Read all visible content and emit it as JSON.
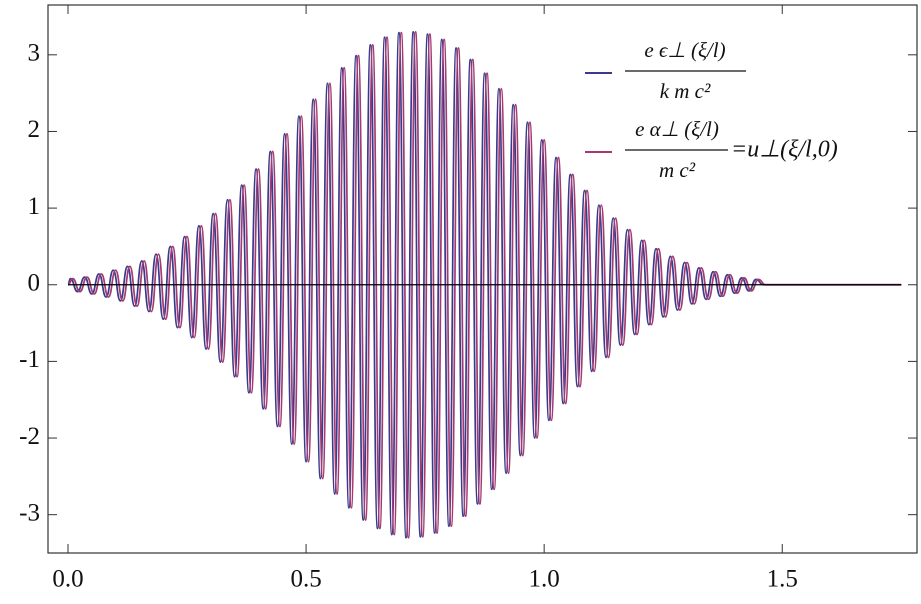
{
  "chart_data": {
    "type": "line",
    "xlim": [
      -0.042,
      1.783
    ],
    "ylim": [
      -3.5,
      3.65
    ],
    "xticks": [
      {
        "value": 0,
        "label": "0.0"
      },
      {
        "value": 0.5,
        "label": "0.5"
      },
      {
        "value": 1,
        "label": "1.0"
      },
      {
        "value": 1.5,
        "label": "1.5"
      }
    ],
    "yticks": [
      -3,
      -2,
      -1,
      0,
      1,
      2,
      3
    ],
    "legend": "top-right",
    "series": [
      {
        "name": {
          "numerator": "e ϵ⊥ (ξ/l)",
          "denominator": "k m c²"
        },
        "color": "#3a3a8c",
        "x": [
          0,
          0.005,
          0.02,
          0.035,
          0.05,
          0.065,
          0.08,
          0.095,
          0.11,
          0.125,
          0.14,
          0.155,
          0.17,
          0.185,
          0.2,
          0.215,
          0.23,
          0.245,
          0.26,
          0.275,
          0.29,
          0.305,
          0.32,
          0.335,
          0.35,
          0.365,
          0.38,
          0.395,
          0.41,
          0.425,
          0.44,
          0.455,
          0.47,
          0.485,
          0.5,
          0.515,
          0.53,
          0.545,
          0.56,
          0.575,
          0.59,
          0.605,
          0.62,
          0.635,
          0.65,
          0.665,
          0.68,
          0.695,
          0.71,
          0.725,
          0.74,
          0.755,
          0.77,
          0.785,
          0.8,
          0.815,
          0.83,
          0.845,
          0.86,
          0.875,
          0.89,
          0.905,
          0.92,
          0.935,
          0.95,
          0.965,
          0.98,
          0.995,
          1.01,
          1.025,
          1.04,
          1.055,
          1.07,
          1.085,
          1.1,
          1.115,
          1.13,
          1.145,
          1.16,
          1.175,
          1.19,
          1.205,
          1.22,
          1.235,
          1.25,
          1.265,
          1.28,
          1.295,
          1.31,
          1.325,
          1.34,
          1.355,
          1.37,
          1.385,
          1.4,
          1.415,
          1.43,
          1.445,
          1.46,
          1.75
        ],
        "values": [
          0,
          0.08,
          -0.09,
          0.1,
          -0.12,
          0.14,
          -0.16,
          0.19,
          -0.21,
          0.24,
          -0.28,
          0.31,
          -0.35,
          0.4,
          -0.45,
          0.5,
          -0.56,
          0.63,
          -0.69,
          0.77,
          -0.84,
          0.93,
          -1.01,
          1.11,
          -1.2,
          1.3,
          -1.41,
          1.51,
          -1.62,
          1.74,
          -1.85,
          1.97,
          -2.08,
          2.2,
          -2.31,
          2.42,
          -2.53,
          2.63,
          -2.73,
          2.83,
          -2.91,
          2.99,
          -3.07,
          3.13,
          -3.18,
          3.23,
          -3.26,
          3.29,
          -3.3,
          3.3,
          -3.29,
          3.27,
          -3.24,
          3.2,
          -3.15,
          3.09,
          -3.02,
          2.94,
          -2.86,
          2.76,
          -2.67,
          2.56,
          -2.46,
          2.35,
          -2.23,
          2.12,
          -2.0,
          1.89,
          -1.77,
          1.66,
          -1.55,
          1.44,
          -1.33,
          1.23,
          -1.13,
          1.04,
          -0.95,
          0.87,
          -0.79,
          0.72,
          -0.65,
          0.58,
          -0.52,
          0.47,
          -0.42,
          0.37,
          -0.33,
          0.29,
          -0.25,
          0.22,
          -0.19,
          0.17,
          -0.15,
          0.13,
          -0.11,
          0.09,
          -0.08,
          0.07,
          0,
          0
        ]
      },
      {
        "name": {
          "numerator": "e α⊥ (ξ/l)",
          "denominator": "m c²",
          "rhs": "=u⊥(ξ/l,0)"
        },
        "color": "#a33a72",
        "x": [
          0,
          0.01,
          0.025,
          0.04,
          0.055,
          0.07,
          0.085,
          0.1,
          0.115,
          0.13,
          0.145,
          0.16,
          0.175,
          0.19,
          0.205,
          0.22,
          0.235,
          0.25,
          0.265,
          0.28,
          0.295,
          0.31,
          0.325,
          0.34,
          0.355,
          0.37,
          0.385,
          0.4,
          0.415,
          0.43,
          0.445,
          0.46,
          0.475,
          0.49,
          0.505,
          0.52,
          0.535,
          0.55,
          0.565,
          0.58,
          0.595,
          0.61,
          0.625,
          0.64,
          0.655,
          0.67,
          0.685,
          0.7,
          0.715,
          0.73,
          0.745,
          0.76,
          0.775,
          0.79,
          0.805,
          0.82,
          0.835,
          0.85,
          0.865,
          0.88,
          0.895,
          0.91,
          0.925,
          0.94,
          0.955,
          0.97,
          0.985,
          1,
          1.015,
          1.03,
          1.045,
          1.06,
          1.075,
          1.09,
          1.105,
          1.12,
          1.135,
          1.15,
          1.165,
          1.18,
          1.195,
          1.21,
          1.225,
          1.24,
          1.255,
          1.27,
          1.285,
          1.3,
          1.315,
          1.33,
          1.345,
          1.36,
          1.375,
          1.39,
          1.405,
          1.42,
          1.435,
          1.45,
          1.465,
          1.75
        ],
        "values": [
          0,
          0.08,
          -0.09,
          0.1,
          -0.12,
          0.14,
          -0.16,
          0.19,
          -0.21,
          0.24,
          -0.28,
          0.31,
          -0.35,
          0.4,
          -0.45,
          0.5,
          -0.56,
          0.63,
          -0.69,
          0.77,
          -0.84,
          0.93,
          -1.01,
          1.11,
          -1.2,
          1.3,
          -1.41,
          1.51,
          -1.62,
          1.74,
          -1.85,
          1.97,
          -2.08,
          2.2,
          -2.31,
          2.42,
          -2.53,
          2.63,
          -2.73,
          2.83,
          -2.91,
          2.99,
          -3.07,
          3.13,
          -3.18,
          3.23,
          -3.26,
          3.29,
          -3.3,
          3.3,
          -3.29,
          3.27,
          -3.24,
          3.2,
          -3.15,
          3.09,
          -3.02,
          2.94,
          -2.86,
          2.76,
          -2.67,
          2.56,
          -2.46,
          2.35,
          -2.23,
          2.12,
          -2.0,
          1.89,
          -1.77,
          1.66,
          -1.55,
          1.44,
          -1.33,
          1.23,
          -1.13,
          1.04,
          -0.95,
          0.87,
          -0.79,
          0.72,
          -0.65,
          0.58,
          -0.52,
          0.47,
          -0.42,
          0.37,
          -0.33,
          0.29,
          -0.25,
          0.22,
          -0.19,
          0.17,
          -0.15,
          0.13,
          -0.11,
          0.09,
          -0.08,
          0.07,
          0,
          0
        ]
      }
    ]
  }
}
